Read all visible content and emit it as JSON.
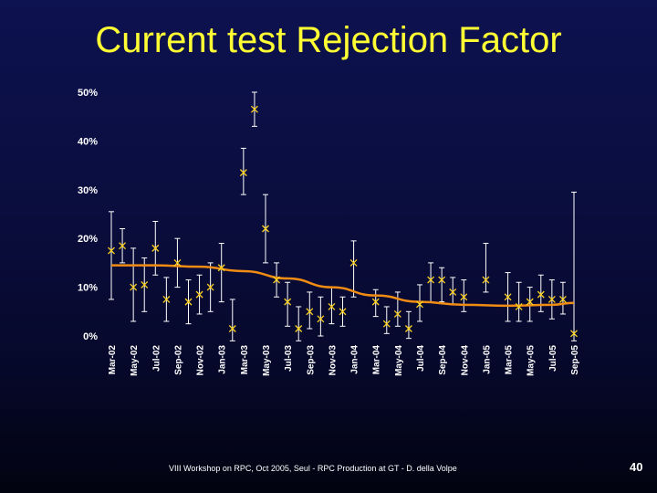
{
  "slide": {
    "title": "Current test Rejection Factor",
    "footer": "VIII Workshop on RPC, Oct 2005, Seul - RPC Production at GT - D. della Volpe",
    "page_number": "40"
  },
  "chart_data": {
    "type": "scatter",
    "title": "",
    "xlabel": "",
    "ylabel": "",
    "ylim": [
      0,
      50
    ],
    "y_ticks": [
      "0%",
      "10%",
      "20%",
      "30%",
      "40%",
      "50%"
    ],
    "x_range": [
      0,
      42
    ],
    "x_ticks": [
      {
        "label": "Mar-02",
        "x": 0
      },
      {
        "label": "May-02",
        "x": 2
      },
      {
        "label": "Jul-02",
        "x": 4
      },
      {
        "label": "Sep-02",
        "x": 6
      },
      {
        "label": "Nov-02",
        "x": 8
      },
      {
        "label": "Jan-03",
        "x": 10
      },
      {
        "label": "Mar-03",
        "x": 12
      },
      {
        "label": "May-03",
        "x": 14
      },
      {
        "label": "Jul-03",
        "x": 16
      },
      {
        "label": "Sep-03",
        "x": 18
      },
      {
        "label": "Nov-03",
        "x": 20
      },
      {
        "label": "Jan-04",
        "x": 22
      },
      {
        "label": "Mar-04",
        "x": 24
      },
      {
        "label": "May-04",
        "x": 26
      },
      {
        "label": "Jul-04",
        "x": 28
      },
      {
        "label": "Sep-04",
        "x": 30
      },
      {
        "label": "Nov-04",
        "x": 32
      },
      {
        "label": "Jan-05",
        "x": 34
      },
      {
        "label": "Mar-05",
        "x": 36
      },
      {
        "label": "May-05",
        "x": 38
      },
      {
        "label": "Jul-05",
        "x": 40
      },
      {
        "label": "Sep-05",
        "x": 42
      }
    ],
    "marker": "x",
    "marker_color": "#ffd21e",
    "errorbar_color": "#ffffff",
    "trend_color": "#f08c14",
    "grid": false,
    "legend": "none",
    "points": [
      {
        "x": 0.0,
        "y": 17.5,
        "lo": 7.5,
        "hi": 25.5
      },
      {
        "x": 1.0,
        "y": 18.5,
        "lo": 15.0,
        "hi": 22.0
      },
      {
        "x": 2.0,
        "y": 10.0,
        "lo": 3.0,
        "hi": 18.0
      },
      {
        "x": 3.0,
        "y": 10.5,
        "lo": 5.0,
        "hi": 16.0
      },
      {
        "x": 4.0,
        "y": 18.0,
        "lo": 12.5,
        "hi": 23.5
      },
      {
        "x": 5.0,
        "y": 7.5,
        "lo": 3.0,
        "hi": 12.0
      },
      {
        "x": 6.0,
        "y": 15.0,
        "lo": 10.0,
        "hi": 20.0
      },
      {
        "x": 7.0,
        "y": 7.0,
        "lo": 2.5,
        "hi": 11.5
      },
      {
        "x": 8.0,
        "y": 8.5,
        "lo": 4.5,
        "hi": 12.5
      },
      {
        "x": 9.0,
        "y": 10.0,
        "lo": 5.0,
        "hi": 15.0
      },
      {
        "x": 10.0,
        "y": 14.0,
        "lo": 7.0,
        "hi": 19.0
      },
      {
        "x": 11.0,
        "y": 1.5,
        "lo": -1.0,
        "hi": 7.5
      },
      {
        "x": 12.0,
        "y": 33.5,
        "lo": 29.0,
        "hi": 38.5
      },
      {
        "x": 13.0,
        "y": 46.5,
        "lo": 43.0,
        "hi": 50.0
      },
      {
        "x": 14.0,
        "y": 22.0,
        "lo": 15.0,
        "hi": 29.0
      },
      {
        "x": 15.0,
        "y": 11.5,
        "lo": 8.0,
        "hi": 15.0
      },
      {
        "x": 16.0,
        "y": 7.0,
        "lo": 2.0,
        "hi": 11.0
      },
      {
        "x": 17.0,
        "y": 1.5,
        "lo": -1.0,
        "hi": 6.0
      },
      {
        "x": 18.0,
        "y": 5.0,
        "lo": 1.5,
        "hi": 9.0
      },
      {
        "x": 19.0,
        "y": 3.5,
        "lo": 0.0,
        "hi": 8.0
      },
      {
        "x": 20.0,
        "y": 6.0,
        "lo": 2.5,
        "hi": 10.0
      },
      {
        "x": 21.0,
        "y": 5.0,
        "lo": 2.0,
        "hi": 8.0
      },
      {
        "x": 22.0,
        "y": 15.0,
        "lo": 8.0,
        "hi": 19.5
      },
      {
        "x": 24.0,
        "y": 7.0,
        "lo": 4.0,
        "hi": 9.5
      },
      {
        "x": 25.0,
        "y": 2.5,
        "lo": 0.5,
        "hi": 6.0
      },
      {
        "x": 26.0,
        "y": 4.5,
        "lo": 2.0,
        "hi": 9.0
      },
      {
        "x": 27.0,
        "y": 1.5,
        "lo": -0.5,
        "hi": 5.0
      },
      {
        "x": 28.0,
        "y": 6.5,
        "lo": 3.0,
        "hi": 10.5
      },
      {
        "x": 29.0,
        "y": 11.5,
        "lo": 7.0,
        "hi": 15.0
      },
      {
        "x": 30.0,
        "y": 11.5,
        "lo": 7.0,
        "hi": 14.0
      },
      {
        "x": 31.0,
        "y": 9.0,
        "lo": 6.5,
        "hi": 12.0
      },
      {
        "x": 32.0,
        "y": 8.0,
        "lo": 5.0,
        "hi": 11.5
      },
      {
        "x": 34.0,
        "y": 11.5,
        "lo": 9.0,
        "hi": 19.0
      },
      {
        "x": 36.0,
        "y": 8.0,
        "lo": 3.0,
        "hi": 13.0
      },
      {
        "x": 37.0,
        "y": 6.0,
        "lo": 3.0,
        "hi": 11.0
      },
      {
        "x": 38.0,
        "y": 7.0,
        "lo": 3.0,
        "hi": 10.0
      },
      {
        "x": 39.0,
        "y": 8.5,
        "lo": 5.0,
        "hi": 12.5
      },
      {
        "x": 40.0,
        "y": 7.5,
        "lo": 3.5,
        "hi": 11.5
      },
      {
        "x": 41.0,
        "y": 7.5,
        "lo": 4.5,
        "hi": 11.0
      },
      {
        "x": 42.0,
        "y": 0.5,
        "lo": -1.0,
        "hi": 29.5
      }
    ],
    "trend": [
      {
        "x": 0,
        "y": 14.5
      },
      {
        "x": 4,
        "y": 14.5
      },
      {
        "x": 8,
        "y": 14.2
      },
      {
        "x": 12,
        "y": 13.3
      },
      {
        "x": 16,
        "y": 11.8
      },
      {
        "x": 20,
        "y": 10.0
      },
      {
        "x": 24,
        "y": 8.3
      },
      {
        "x": 28,
        "y": 7.0
      },
      {
        "x": 32,
        "y": 6.4
      },
      {
        "x": 36,
        "y": 6.2
      },
      {
        "x": 40,
        "y": 6.4
      },
      {
        "x": 42,
        "y": 6.8
      }
    ]
  }
}
